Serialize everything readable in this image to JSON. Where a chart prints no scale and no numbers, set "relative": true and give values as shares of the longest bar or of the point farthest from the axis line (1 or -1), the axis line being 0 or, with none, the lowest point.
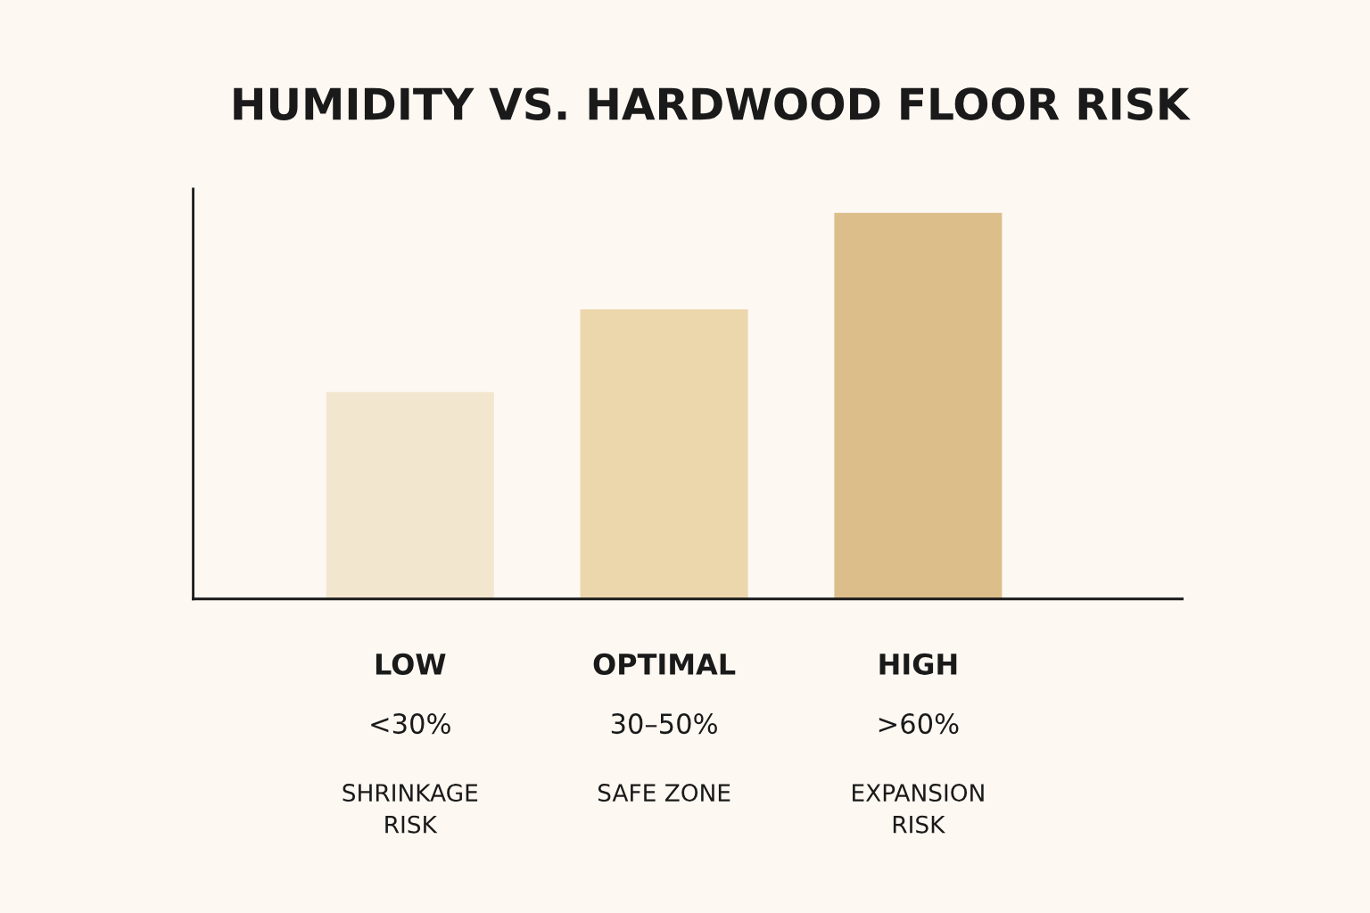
{
  "chart_data": {
    "type": "bar",
    "title": "HUMIDITY VS. HARDWOOD FLOOR RISK",
    "categories": [
      "LOW",
      "OPTIMAL",
      "HIGH"
    ],
    "values": [
      0.536,
      0.75,
      1
    ],
    "colors": [
      "#f3e6cf",
      "#ecd6ac",
      "#dcbe8b"
    ],
    "relative": true,
    "annotations": [
      "<30%",
      "30–50%",
      ">60%",
      "SHRINKAGE\nRISK",
      "SAFE ZONE",
      "EXPANSION\nRISK"
    ],
    "grid": false,
    "legend": false
  }
}
